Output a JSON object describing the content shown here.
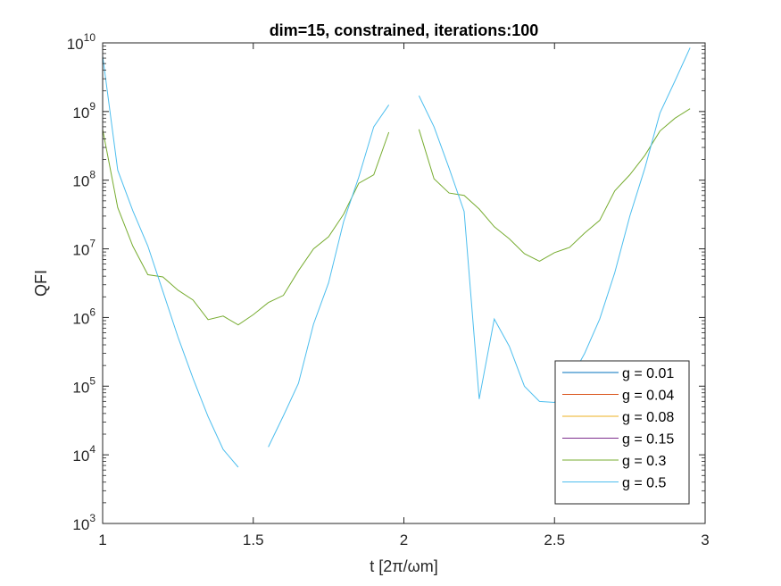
{
  "chart_data": {
    "type": "line",
    "title": "dim=15, constrained, iterations:100",
    "xlabel": "t [2π/ωm]",
    "ylabel": "QFI",
    "xlim": [
      1,
      3
    ],
    "ylim": [
      1000,
      10000000000
    ],
    "yscale": "log",
    "x_ticks": [
      1,
      1.5,
      2,
      2.5,
      3
    ],
    "x_tick_labels": [
      "1",
      "1.5",
      "2",
      "2.5",
      "3"
    ],
    "y_ticks": [
      1000,
      10000,
      100000,
      1000000,
      10000000,
      100000000,
      1000000000,
      10000000000
    ],
    "y_tick_bases": [
      "10",
      "10",
      "10",
      "10",
      "10",
      "10",
      "10",
      "10"
    ],
    "y_tick_exponents": [
      "3",
      "4",
      "5",
      "6",
      "7",
      "8",
      "9",
      "10"
    ],
    "grid": false,
    "legend_position": "bottom-right",
    "series": [
      {
        "name": "g = 0.01",
        "color": "#0072BD",
        "x": [],
        "y": []
      },
      {
        "name": "g = 0.04",
        "color": "#D95319",
        "x": [],
        "y": []
      },
      {
        "name": "g = 0.08",
        "color": "#EDB120",
        "x": [],
        "y": []
      },
      {
        "name": "g = 0.15",
        "color": "#7E2F8E",
        "x": [],
        "y": []
      },
      {
        "name": "g = 0.3",
        "color": "#77AC30",
        "segments": [
          {
            "x": [
              1.0,
              1.05,
              1.1,
              1.15,
              1.2,
              1.25,
              1.3,
              1.35,
              1.4,
              1.45,
              1.5,
              1.55,
              1.6,
              1.65,
              1.7,
              1.75,
              1.8,
              1.85,
              1.9,
              1.95
            ],
            "y": [
              550000000,
              40000000,
              11000000,
              4200000,
              3900000,
              2500000,
              1800000,
              930000,
              1050000,
              780000,
              1100000,
              1650000,
              2100000,
              4800000,
              10000000,
              15000000,
              32000000,
              90000000,
              120000000,
              500000000
            ]
          },
          {
            "x": [
              2.05,
              2.1,
              2.15,
              2.2,
              2.25,
              2.3,
              2.35,
              2.4,
              2.45,
              2.5,
              2.55,
              2.6,
              2.65,
              2.7,
              2.75,
              2.8,
              2.85,
              2.9,
              2.95
            ],
            "y": [
              550000000,
              105000000,
              65000000,
              60000000,
              38000000,
              21000000,
              14000000,
              8500000,
              6600000,
              8800000,
              10500000,
              17000000,
              26000000,
              70000000,
              120000000,
              230000000,
              520000000,
              800000000,
              1100000000
            ]
          }
        ]
      },
      {
        "name": "g = 0.5",
        "color": "#4DBEEE",
        "segments": [
          {
            "x": [
              1.0,
              1.05,
              1.1,
              1.15,
              1.2,
              1.25,
              1.3,
              1.35,
              1.4,
              1.45
            ],
            "y": [
              6500000000,
              140000000,
              36000000,
              11000000,
              2400000,
              520000,
              130000,
              36000,
              12000,
              6600
            ]
          },
          {
            "x": [
              1.55,
              1.6,
              1.65,
              1.7,
              1.75,
              1.8,
              1.85,
              1.9,
              1.95
            ],
            "y": [
              13000,
              37000,
              110000,
              800000,
              3200000,
              25000000,
              110000000,
              600000000,
              1250000000
            ]
          },
          {
            "x": [
              2.05,
              2.1,
              2.15,
              2.2,
              2.25,
              2.3,
              2.35,
              2.4,
              2.45,
              2.5,
              2.55,
              2.6,
              2.65,
              2.7,
              2.75,
              2.8,
              2.85,
              2.9,
              2.95
            ],
            "y": [
              1700000000,
              600000000,
              150000000,
              35000000,
              65000,
              950000,
              380000,
              100000,
              60000,
              58000,
              120000,
              300000,
              950000,
              4500000,
              30000000,
              150000000,
              950000000,
              2800000000,
              8500000000
            ]
          }
        ]
      }
    ]
  }
}
